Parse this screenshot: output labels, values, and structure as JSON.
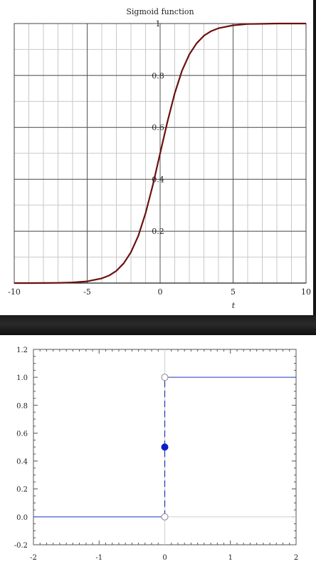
{
  "chart_data": [
    {
      "type": "line",
      "title": "Sigmoid function",
      "xlabel": "t",
      "ylabel": "",
      "xlim": [
        -10,
        10
      ],
      "ylim": [
        0,
        1
      ],
      "x_ticks": [
        -10,
        -5,
        0,
        5,
        10
      ],
      "x_tick_labels": [
        "-10",
        "-5",
        "0",
        "5",
        "10"
      ],
      "y_ticks": [
        0.2,
        0.4,
        0.6,
        0.8,
        1
      ],
      "y_tick_labels": [
        "0.2",
        "0.4",
        "0.6",
        "0.8",
        "1"
      ],
      "grid": true,
      "series": [
        {
          "color": "#6b1010",
          "x": [
            -10,
            -9,
            -8,
            -7,
            -6,
            -5,
            -4,
            -3.5,
            -3,
            -2.5,
            -2,
            -1.5,
            -1,
            -0.5,
            0,
            0.5,
            1,
            1.5,
            2,
            2.5,
            3,
            3.5,
            4,
            5,
            6,
            7,
            8,
            9,
            10
          ],
          "y": [
            0.0,
            0.0001,
            0.0003,
            0.0009,
            0.0025,
            0.0067,
            0.018,
            0.029,
            0.047,
            0.076,
            0.119,
            0.182,
            0.269,
            0.378,
            0.5,
            0.622,
            0.731,
            0.818,
            0.881,
            0.924,
            0.953,
            0.971,
            0.982,
            0.993,
            0.998,
            0.999,
            1.0,
            1.0,
            1.0
          ]
        }
      ]
    },
    {
      "type": "line",
      "title": "",
      "xlabel": "",
      "ylabel": "",
      "xlim": [
        -2,
        2
      ],
      "ylim": [
        -0.2,
        1.2
      ],
      "x_ticks": [
        -2,
        -1,
        0,
        1,
        2
      ],
      "x_tick_labels": [
        "-2",
        "-1",
        "0",
        "1",
        "2"
      ],
      "y_ticks": [
        -0.2,
        0.0,
        0.2,
        0.4,
        0.6,
        0.8,
        1.0,
        1.2
      ],
      "y_tick_labels": [
        "-0.2",
        "0.0",
        "0.2",
        "0.4",
        "0.6",
        "0.8",
        "1.0",
        "1.2"
      ],
      "grid": false,
      "series": [
        {
          "color": "#4a5fd0",
          "x": [
            -2,
            0
          ],
          "y": [
            0,
            0
          ]
        },
        {
          "color": "#4a5fd0",
          "x": [
            0,
            2
          ],
          "y": [
            1,
            1
          ]
        }
      ],
      "jump": {
        "x": 0,
        "from": 0,
        "to": 1,
        "style": "dashed",
        "color": "#2233aa"
      },
      "open_points": [
        {
          "x": 0,
          "y": 0
        },
        {
          "x": 0,
          "y": 1
        }
      ],
      "filled_points": [
        {
          "x": 0,
          "y": 0.5,
          "color": "#0a1fc8"
        }
      ]
    }
  ]
}
